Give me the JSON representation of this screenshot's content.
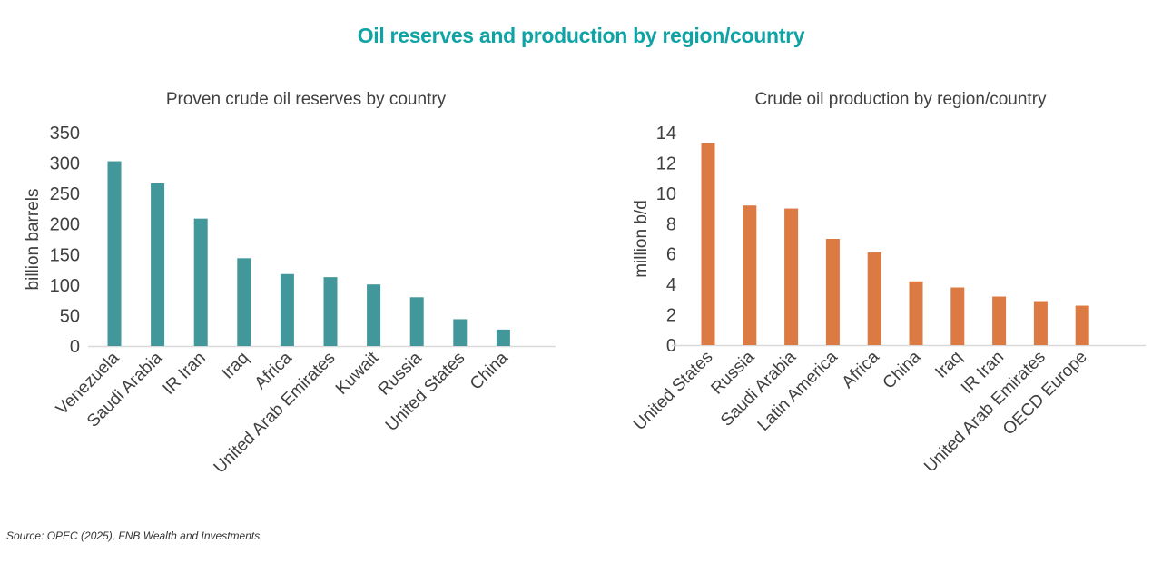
{
  "title": "Oil reserves and production by region/country",
  "source": "Source: OPEC (2025), FNB Wealth and Investments",
  "chart_data": [
    {
      "type": "bar",
      "title": "Proven crude oil reserves by country",
      "xlabel": "",
      "ylabel": "billion barrels",
      "ylim": [
        0,
        350
      ],
      "yticks": [
        0,
        50,
        100,
        150,
        200,
        250,
        300,
        350
      ],
      "color": "#42979a",
      "grid": false,
      "categories": [
        "Venezuela",
        "Saudi Arabia",
        "IR Iran",
        "Iraq",
        "Africa",
        "United Arab Emirates",
        "Kuwait",
        "Russia",
        "United States",
        "China"
      ],
      "values": [
        303,
        267,
        209,
        144,
        118,
        113,
        101,
        80,
        44,
        27
      ]
    },
    {
      "type": "bar",
      "title": "Crude oil production by region/country",
      "xlabel": "",
      "ylabel": "million b/d",
      "ylim": [
        0,
        14
      ],
      "yticks": [
        0,
        2,
        4,
        6,
        8,
        10,
        12,
        14
      ],
      "color": "#db7a43",
      "grid": false,
      "categories": [
        "United States",
        "Russia",
        "Saudi Arabia",
        "Latin America",
        "Africa",
        "China",
        "Iraq",
        "IR Iran",
        "United Arab Emirates",
        "OECD Europe"
      ],
      "values": [
        13.3,
        9.2,
        9.0,
        7.0,
        6.1,
        4.2,
        3.8,
        3.2,
        2.9,
        2.6
      ]
    }
  ]
}
